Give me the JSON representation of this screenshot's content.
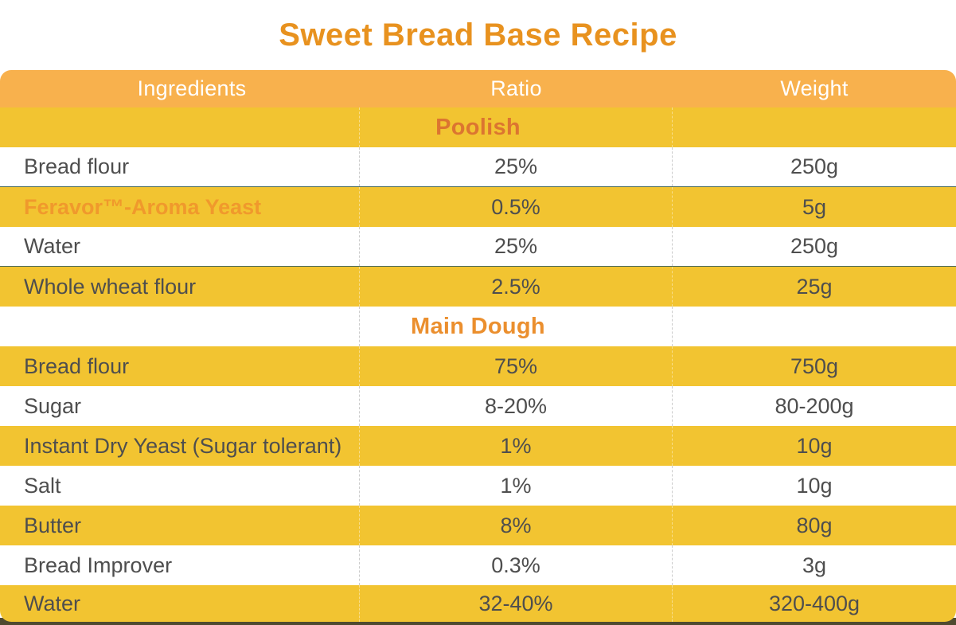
{
  "page": {
    "title": "Sweet Bread Base Recipe"
  },
  "colors": {
    "title_orange": "#E8921F",
    "header_bg": "#F8B14D",
    "header_text": "#FFFFFF",
    "row_yellow": "#F2C431",
    "body_text": "#4E4E4E",
    "brand_orange": "#F0992C",
    "divider_teal": "#47695C",
    "bottom_strip": "#4F4A30",
    "section_poolish": "#DC7530",
    "section_main_dough": "#EB8F2E"
  },
  "table": {
    "columns": [
      {
        "label": "Ingredients"
      },
      {
        "label": "Ratio"
      },
      {
        "label": "Weight"
      }
    ],
    "rows": [
      {
        "kind": "section",
        "label": "Poolish",
        "bg": "yellow",
        "label_color_key": "section_poolish"
      },
      {
        "kind": "ingredient",
        "ingredient": "Bread flour",
        "ratio": "25%",
        "weight": "250g",
        "bg": "white",
        "divider": true
      },
      {
        "kind": "ingredient",
        "ingredient": "Feravor™-Aroma Yeast",
        "ratio": "0.5%",
        "weight": "5g",
        "bg": "yellow",
        "brand": true
      },
      {
        "kind": "ingredient",
        "ingredient": "Water",
        "ratio": "25%",
        "weight": "250g",
        "bg": "white",
        "divider": true
      },
      {
        "kind": "ingredient",
        "ingredient": "Whole wheat flour",
        "ratio": "2.5%",
        "weight": "25g",
        "bg": "yellow"
      },
      {
        "kind": "section",
        "label": "Main Dough",
        "bg": "white",
        "label_color_key": "section_main_dough"
      },
      {
        "kind": "ingredient",
        "ingredient": "Bread flour",
        "ratio": "75%",
        "weight": "750g",
        "bg": "yellow"
      },
      {
        "kind": "ingredient",
        "ingredient": "Sugar",
        "ratio": "8-20%",
        "weight": "80-200g",
        "bg": "white"
      },
      {
        "kind": "ingredient",
        "ingredient": "Instant Dry Yeast (Sugar tolerant)",
        "ratio": "1%",
        "weight": "10g",
        "bg": "yellow"
      },
      {
        "kind": "ingredient",
        "ingredient": "Salt",
        "ratio": "1%",
        "weight": "10g",
        "bg": "white"
      },
      {
        "kind": "ingredient",
        "ingredient": "Butter",
        "ratio": "8%",
        "weight": "80g",
        "bg": "yellow"
      },
      {
        "kind": "ingredient",
        "ingredient": "Bread Improver",
        "ratio": "0.3%",
        "weight": "3g",
        "bg": "white"
      },
      {
        "kind": "ingredient",
        "ingredient": "Water",
        "ratio": "32-40%",
        "weight": "320-400g",
        "bg": "yellow"
      }
    ]
  }
}
